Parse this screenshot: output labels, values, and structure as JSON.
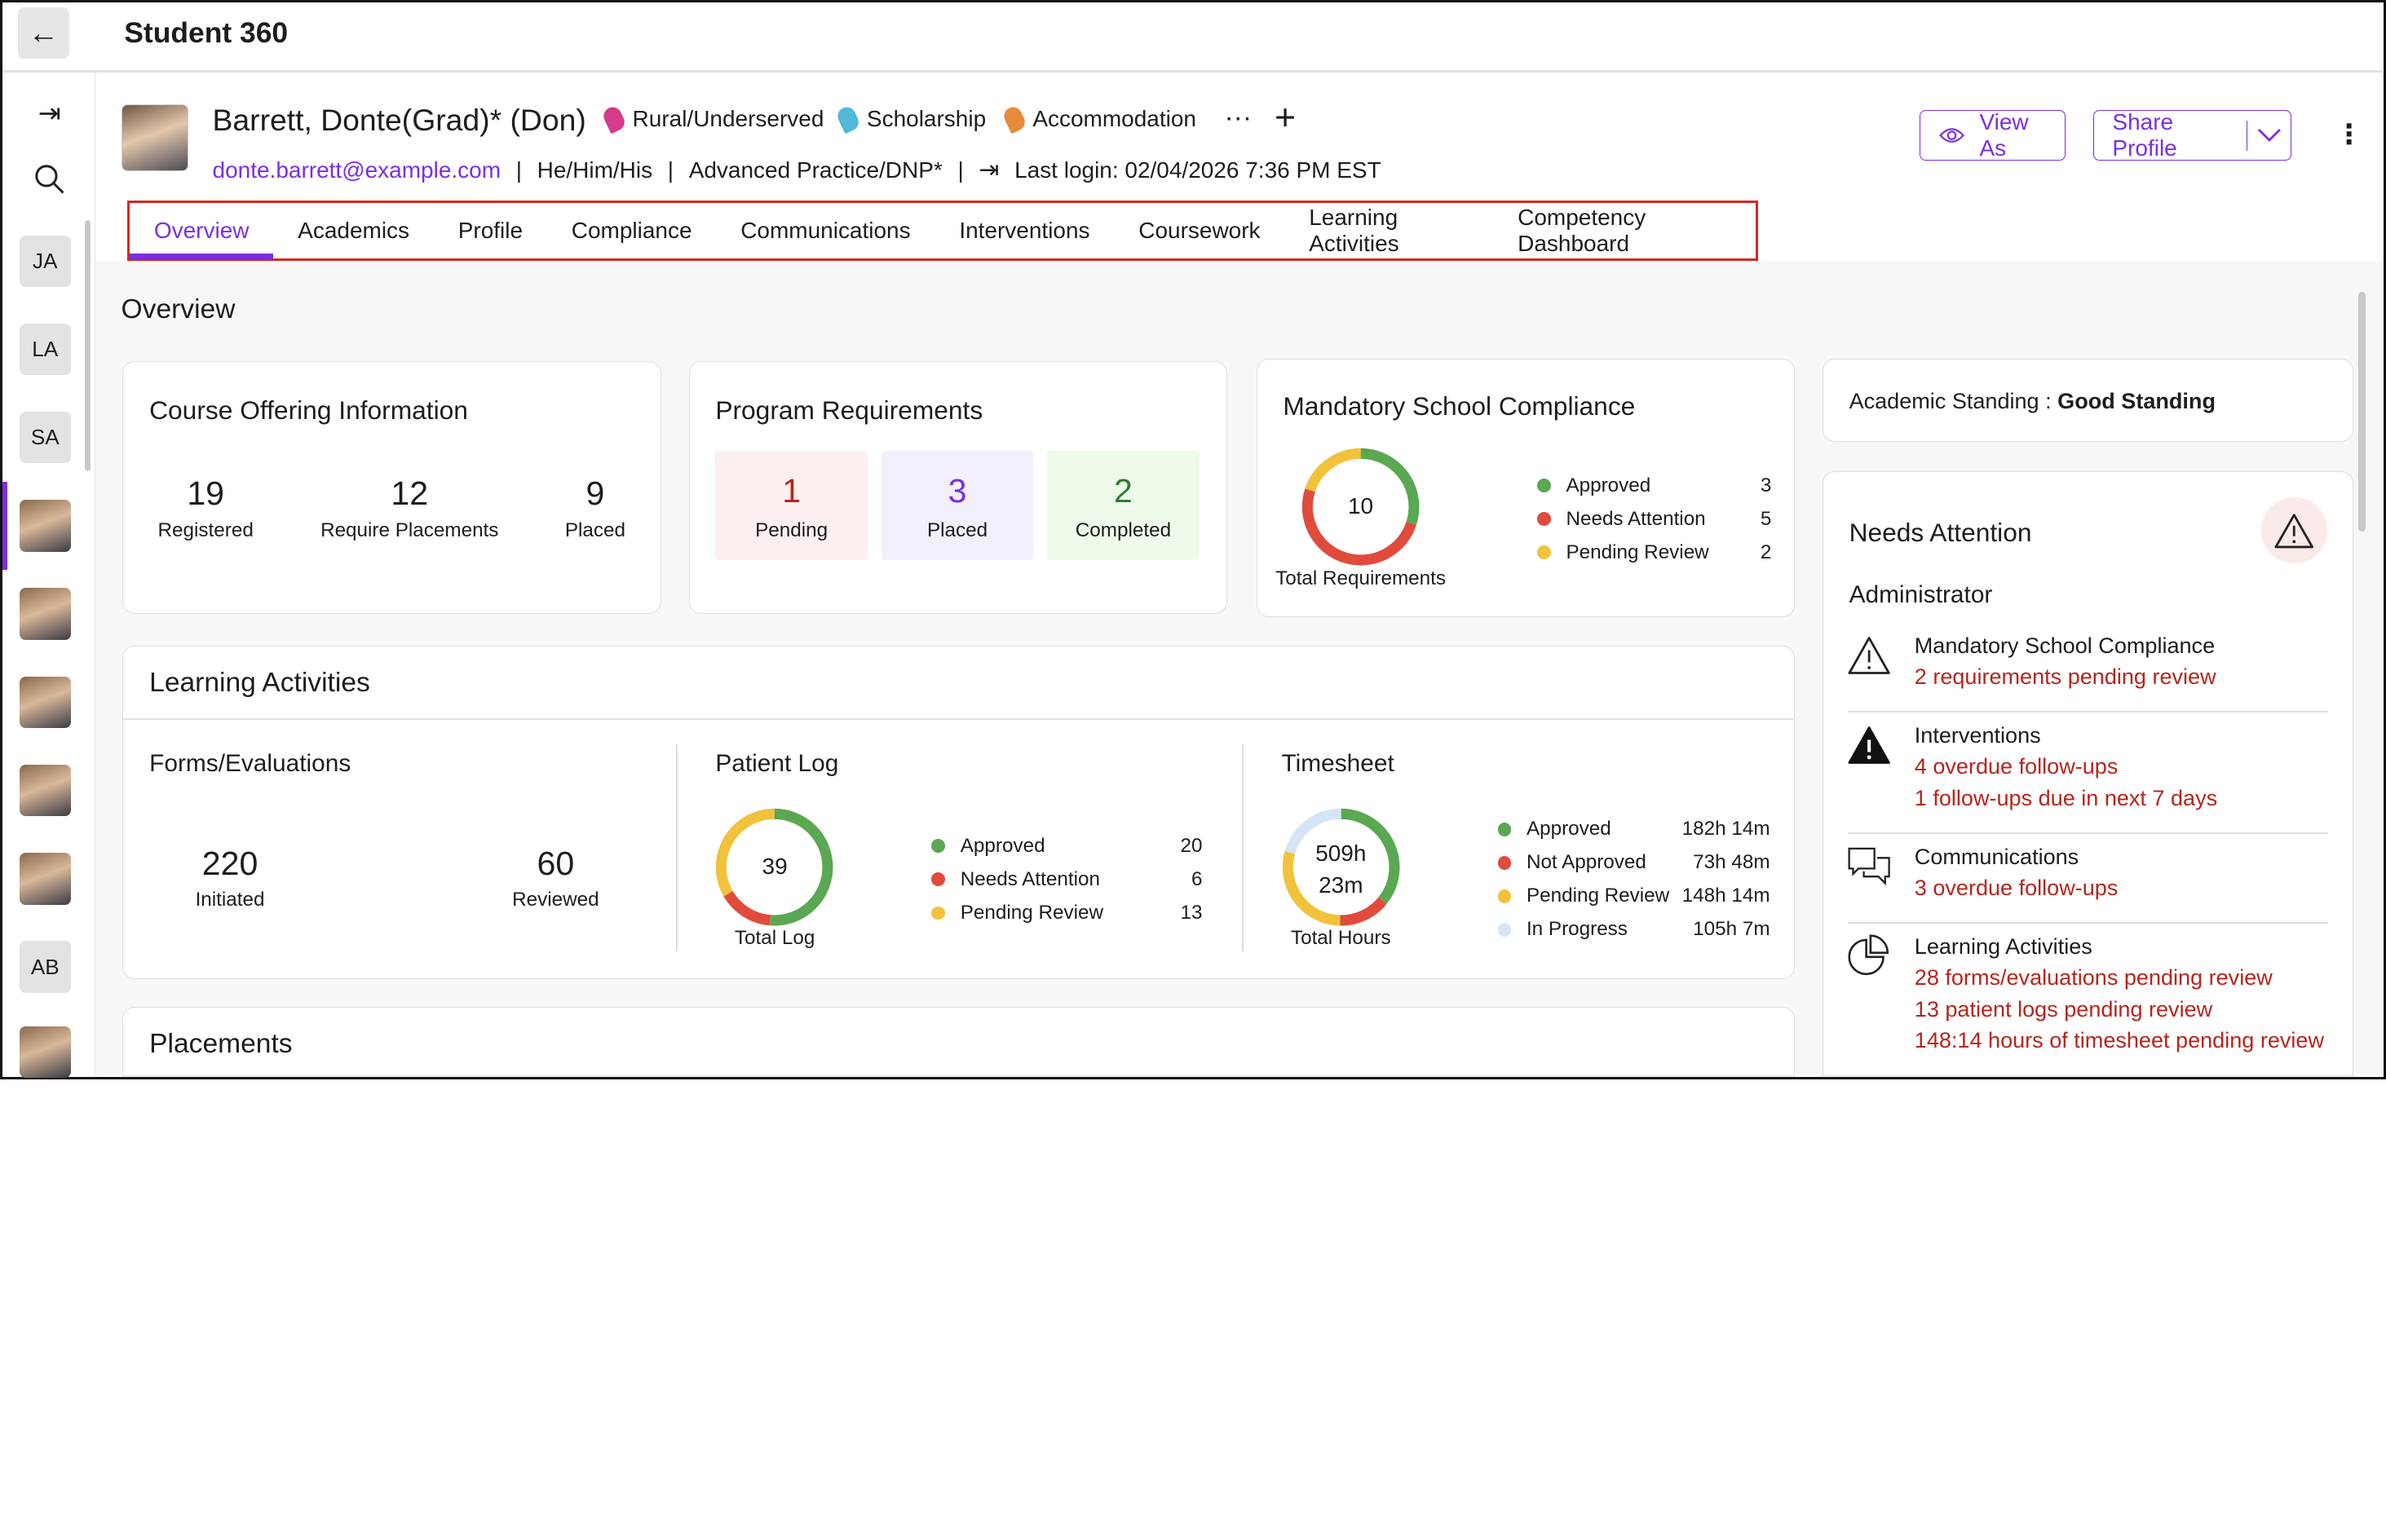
{
  "app": {
    "title": "Student 360",
    "back_icon": "arrow-left-icon"
  },
  "rail": {
    "items": [
      {
        "type": "initials",
        "label": "JA"
      },
      {
        "type": "initials",
        "label": "LA"
      },
      {
        "type": "initials",
        "label": "SA"
      },
      {
        "type": "photo",
        "selected": true
      },
      {
        "type": "photo"
      },
      {
        "type": "photo"
      },
      {
        "type": "photo"
      },
      {
        "type": "photo"
      },
      {
        "type": "initials",
        "label": "AB"
      },
      {
        "type": "photo"
      }
    ]
  },
  "profile": {
    "name": "Barrett, Donte(Grad)* (Don)",
    "tags": [
      {
        "label": "Rural/Underserved",
        "color": "#d63a8a"
      },
      {
        "label": "Scholarship",
        "color": "#4fb9d6"
      },
      {
        "label": "Accommodation",
        "color": "#e88a3c"
      }
    ],
    "more": "···",
    "add": "+",
    "email": "donte.barrett@example.com",
    "pronouns": "He/Him/His",
    "program": "Advanced Practice/DNP*",
    "last_login": "Last login: 02/04/2026 7:36 PM EST",
    "sep": "|"
  },
  "actions": {
    "view_as": "View As",
    "share_profile": "Share Profile",
    "kebab": "⋮"
  },
  "tabs": [
    "Overview",
    "Academics",
    "Profile",
    "Compliance",
    "Communications",
    "Interventions",
    "Coursework",
    "Learning Activities",
    "Competency Dashboard"
  ],
  "active_tab": "Overview",
  "accent": "#7b2fe0",
  "overview": {
    "title": "Overview",
    "course_offering": {
      "title": "Course Offering Information",
      "stats": [
        {
          "value": "19",
          "label": "Registered"
        },
        {
          "value": "12",
          "label": "Require Placements"
        },
        {
          "value": "9",
          "label": "Placed"
        }
      ]
    },
    "program_requirements": {
      "title": "Program Requirements",
      "boxes": [
        {
          "value": "1",
          "label": "Pending",
          "color": "#b3261e",
          "bg": "#fbefef"
        },
        {
          "value": "3",
          "label": "Placed",
          "color": "#7b2fe0",
          "bg": "#f3effc"
        },
        {
          "value": "2",
          "label": "Completed",
          "color": "#2e7d32",
          "bg": "#eefaea"
        }
      ]
    },
    "mandatory": {
      "title": "Mandatory School Compliance",
      "center": "10",
      "caption": "Total Requirements",
      "segments": [
        {
          "label": "Approved",
          "value": 3,
          "display": "3",
          "color": "#5aa852"
        },
        {
          "label": "Needs Attention",
          "value": 5,
          "display": "5",
          "color": "#e04b3c"
        },
        {
          "label": "Pending Review",
          "value": 2,
          "display": "2",
          "color": "#f2c23c"
        }
      ]
    },
    "learning": {
      "title": "Learning Activities",
      "forms": {
        "title": "Forms/Evaluations",
        "stats": [
          {
            "value": "220",
            "label": "Initiated"
          },
          {
            "value": "60",
            "label": "Reviewed"
          }
        ]
      },
      "patient_log": {
        "title": "Patient Log",
        "center": "39",
        "caption": "Total Log",
        "segments": [
          {
            "label": "Approved",
            "value": 20,
            "display": "20",
            "color": "#5aa852"
          },
          {
            "label": "Needs Attention",
            "value": 6,
            "display": "6",
            "color": "#e04b3c"
          },
          {
            "label": "Pending Review",
            "value": 13,
            "display": "13",
            "color": "#f2c23c"
          }
        ]
      },
      "timesheet": {
        "title": "Timesheet",
        "center1": "509h",
        "center2": "23m",
        "caption": "Total Hours",
        "segments": [
          {
            "label": "Approved",
            "value": 182.23,
            "display": "182h 14m",
            "color": "#5aa852"
          },
          {
            "label": "Not Approved",
            "value": 73.8,
            "display": "73h 48m",
            "color": "#e04b3c"
          },
          {
            "label": "Pending Review",
            "value": 148.23,
            "display": "148h 14m",
            "color": "#f2c23c"
          },
          {
            "label": "In Progress",
            "value": 105.12,
            "display": "105h 7m",
            "color": "#d6e4f7"
          }
        ]
      }
    },
    "placements": {
      "title": "Placements"
    },
    "academic_standing": {
      "label": "Academic Standing : ",
      "value": "Good Standing"
    },
    "needs_attention": {
      "title": "Needs Attention",
      "role": "Administrator",
      "items": [
        {
          "icon": "warning-outline-icon",
          "title": "Mandatory School Compliance",
          "reasons": [
            "2 requirements pending review"
          ]
        },
        {
          "icon": "warning-filled-icon",
          "title": "Interventions",
          "reasons": [
            "4 overdue follow-ups",
            "1 follow-ups due in next 7 days"
          ]
        },
        {
          "icon": "chat-bubbles-icon",
          "title": "Communications",
          "reasons": [
            "3 overdue follow-ups"
          ]
        },
        {
          "icon": "pie-chart-icon",
          "title": "Learning Activities",
          "reasons": [
            "28 forms/evaluations pending review",
            "13 patient logs pending review",
            "148:14 hours of timesheet pending review"
          ]
        }
      ]
    }
  }
}
